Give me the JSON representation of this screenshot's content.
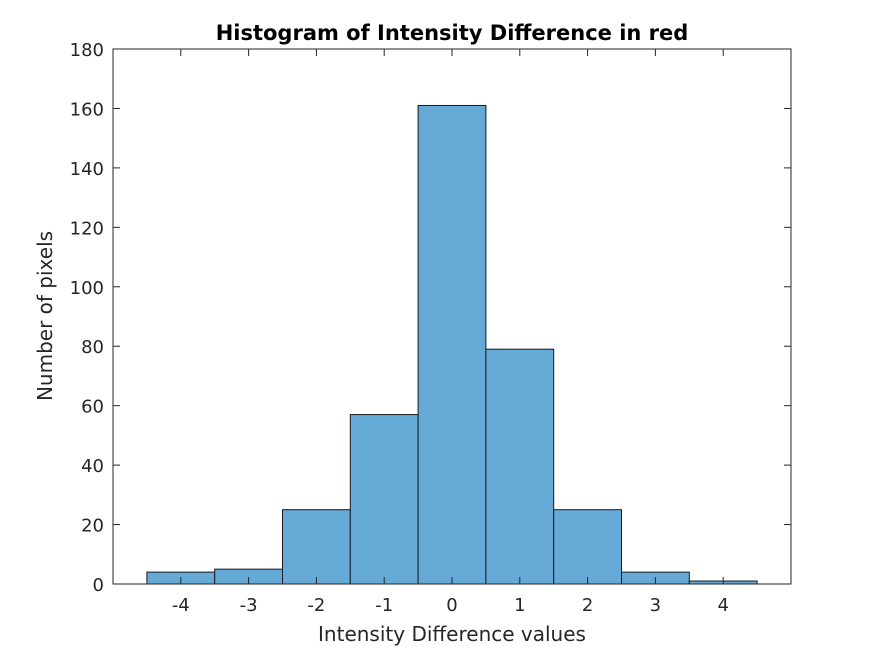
{
  "chart_data": {
    "type": "bar",
    "title": "Histogram of Intensity Difference in red",
    "xlabel": "Intensity Difference values",
    "ylabel": "Number of pixels",
    "categories": [
      "-4",
      "-3",
      "-2",
      "-1",
      "0",
      "1",
      "2",
      "3",
      "4"
    ],
    "x": [
      -4,
      -3,
      -2,
      -1,
      0,
      1,
      2,
      3,
      4
    ],
    "values": [
      4,
      5,
      25,
      57,
      161,
      79,
      25,
      4,
      1
    ],
    "xlim": [
      -5,
      5
    ],
    "ylim": [
      0,
      180
    ],
    "xticks": [
      -4,
      -3,
      -2,
      -1,
      0,
      1,
      2,
      3,
      4
    ],
    "yticks": [
      0,
      20,
      40,
      60,
      80,
      100,
      120,
      140,
      160,
      180
    ],
    "bar_color": "#65a9d7",
    "edge_color": "#1a1a1a",
    "grid": false,
    "legend": false
  }
}
